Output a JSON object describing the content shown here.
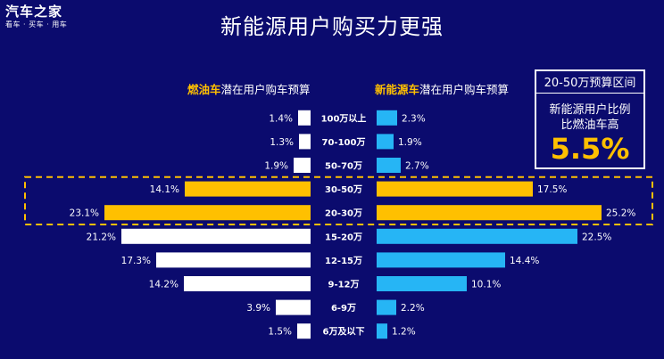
{
  "logo": {
    "main": "汽车之家",
    "sub": "看车 · 买车 · 用车"
  },
  "title": "新能源用户购买力更强",
  "left_heading": {
    "highlight": "燃油车",
    "rest": "潜在用户购车预算"
  },
  "right_heading": {
    "highlight": "新能源车",
    "rest": "潜在用户购车预算"
  },
  "callout": {
    "range": "20-50万预算区间",
    "line1": "新能源用户比例",
    "line2": "比燃油车高",
    "value": "5.5%"
  },
  "colors": {
    "background": "#0b0b6e",
    "gas": "#ffffff",
    "nev": "#26b5f5",
    "highlight": "#ffc000"
  },
  "chart_data": {
    "type": "bar",
    "orientation": "horizontal-butterfly",
    "categories": [
      "100万以上",
      "70-100万",
      "50-70万",
      "30-50万",
      "20-30万",
      "15-20万",
      "12-15万",
      "9-12万",
      "6-9万",
      "6万及以下"
    ],
    "series": [
      {
        "name": "燃油车潜在用户购车预算",
        "values": [
          1.4,
          1.3,
          1.9,
          14.1,
          23.1,
          21.2,
          17.3,
          14.2,
          3.9,
          1.5
        ],
        "labels": [
          "1.4%",
          "1.3%",
          "1.9%",
          "14.1%",
          "23.1%",
          "21.2%",
          "17.3%",
          "14.2%",
          "3.9%",
          "1.5%"
        ]
      },
      {
        "name": "新能源车潜在用户购车预算",
        "values": [
          2.3,
          1.9,
          2.7,
          17.5,
          25.2,
          22.5,
          14.4,
          10.1,
          2.2,
          1.2
        ],
        "labels": [
          "2.3%",
          "1.9%",
          "2.7%",
          "17.5%",
          "25.2%",
          "22.5%",
          "14.4%",
          "10.1%",
          "2.2%",
          "1.2%"
        ]
      }
    ],
    "highlighted_categories": [
      "30-50万",
      "20-30万"
    ]
  }
}
